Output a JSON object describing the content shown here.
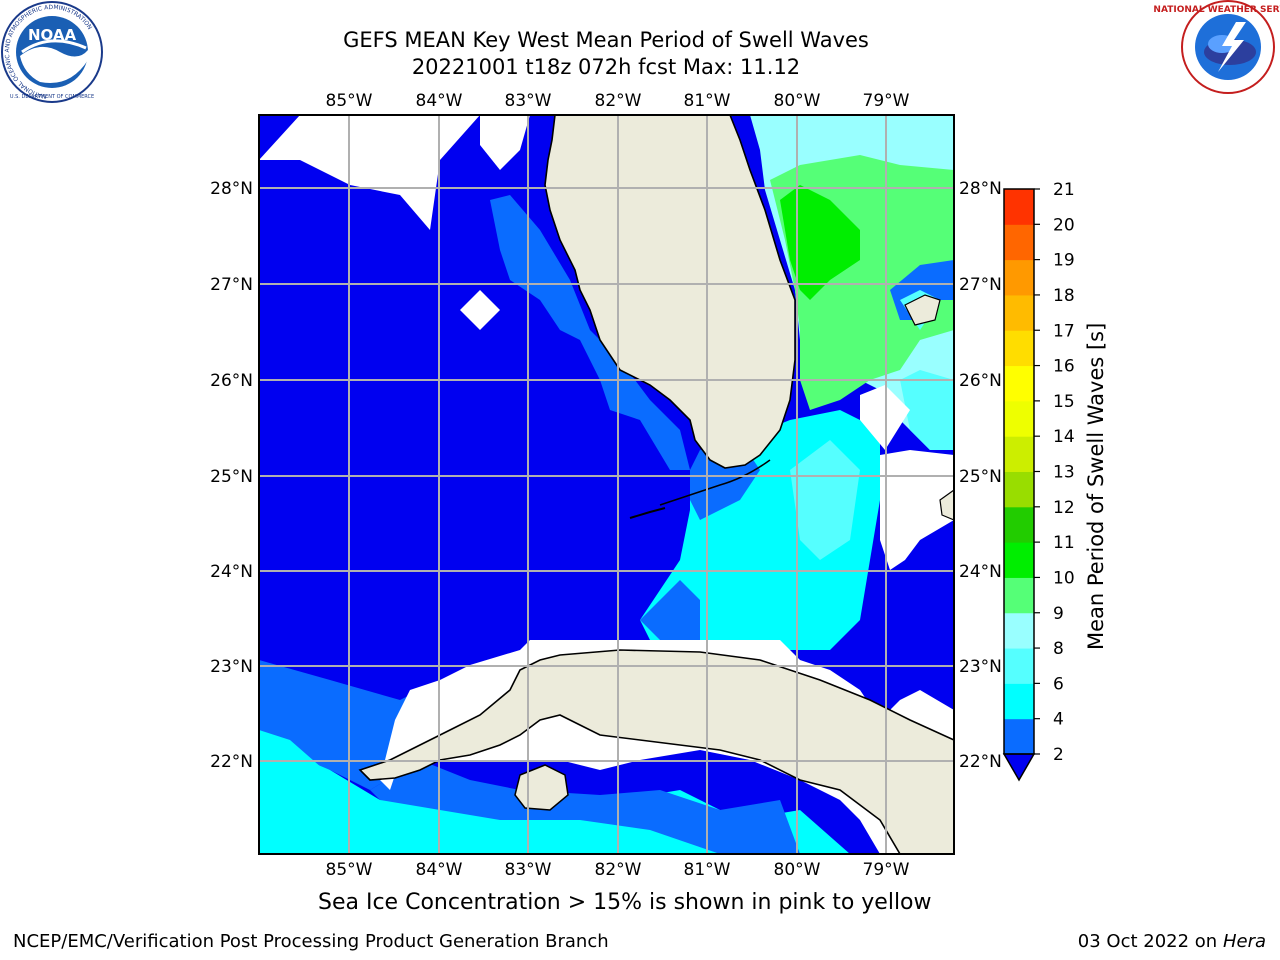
{
  "title": {
    "line1": "GEFS MEAN Key West Mean Period of Swell Waves",
    "line2": "20221001 t18z 072h fcst   Max: 11.12"
  },
  "map": {
    "lon_labels": [
      "85°W",
      "84°W",
      "83°W",
      "82°W",
      "81°W",
      "80°W",
      "79°W"
    ],
    "lat_labels": [
      "28°N",
      "27°N",
      "26°N",
      "25°N",
      "24°N",
      "23°N",
      "22°N"
    ],
    "ocean_colors": {
      "deep": "#0000f0",
      "level2": "#0a6cff",
      "level4": "#00ffff",
      "level6": "#55ffff",
      "level8": "#99ffff",
      "level9": "#55ff77",
      "level10": "#00ee00"
    },
    "land_color": "#ecebdb",
    "missing_color": "#ffffff"
  },
  "colorbar": {
    "title": "Mean Period of Swell Waves [s]",
    "ticks": [
      "2",
      "4",
      "6",
      "8",
      "9",
      "10",
      "11",
      "12",
      "13",
      "14",
      "15",
      "16",
      "17",
      "18",
      "19",
      "20",
      "21"
    ],
    "colors": [
      "#0a6cff",
      "#00ffff",
      "#55ffff",
      "#99ffff",
      "#55ff77",
      "#00ee00",
      "#22cc00",
      "#99dd00",
      "#ccee00",
      "#eeff00",
      "#ffff00",
      "#ffdd00",
      "#ffbb00",
      "#ff9900",
      "#ff6600",
      "#ff3300",
      "#ff0000"
    ]
  },
  "note": "Sea Ice Concentration > 15% is shown in pink to yellow",
  "footer": {
    "left": "NCEP/EMC/Verification Post Processing Product Generation Branch",
    "date": "03 Oct 2022 on ",
    "machine": "Hera"
  },
  "logos": {
    "noaa_text": "NOAA",
    "nws_ring": "NATIONAL WEATHER SERVICE",
    "noaa_ring": "NATIONAL OCEANIC AND ATMOSPHERIC ADMINISTRATION",
    "noaa_ring_bottom": "U.S. DEPARTMENT OF COMMERCE"
  }
}
